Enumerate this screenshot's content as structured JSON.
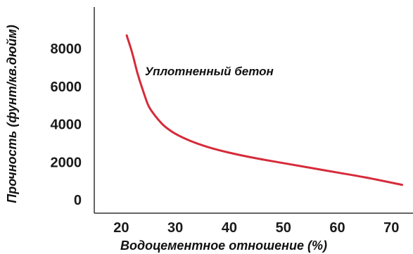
{
  "chart_data": {
    "type": "line",
    "title": "",
    "xlabel": "Водоцементное отношение (%)",
    "ylabel": "Прочность (фунт/кв.дюйм)",
    "x_ticks": [
      "20",
      "30",
      "40",
      "50",
      "60",
      "70"
    ],
    "y_ticks": [
      "0",
      "2000",
      "4000",
      "6000",
      "8000"
    ],
    "xlim": [
      15,
      74
    ],
    "ylim": [
      -700,
      10200
    ],
    "grid": false,
    "legend": "none",
    "annotations": [
      {
        "text": "Уплотненный бетон",
        "x": 40,
        "y": 7200
      }
    ],
    "series": [
      {
        "name": "Уплотненный бетон",
        "color": "#d62b3a",
        "x": [
          21,
          22,
          23,
          24,
          25,
          26,
          27,
          28,
          30,
          33,
          36,
          40,
          45,
          50,
          55,
          60,
          65,
          72
        ],
        "y": [
          8700,
          7800,
          6700,
          5800,
          5000,
          4550,
          4200,
          3900,
          3500,
          3100,
          2800,
          2500,
          2200,
          1950,
          1700,
          1450,
          1200,
          800
        ]
      }
    ]
  }
}
